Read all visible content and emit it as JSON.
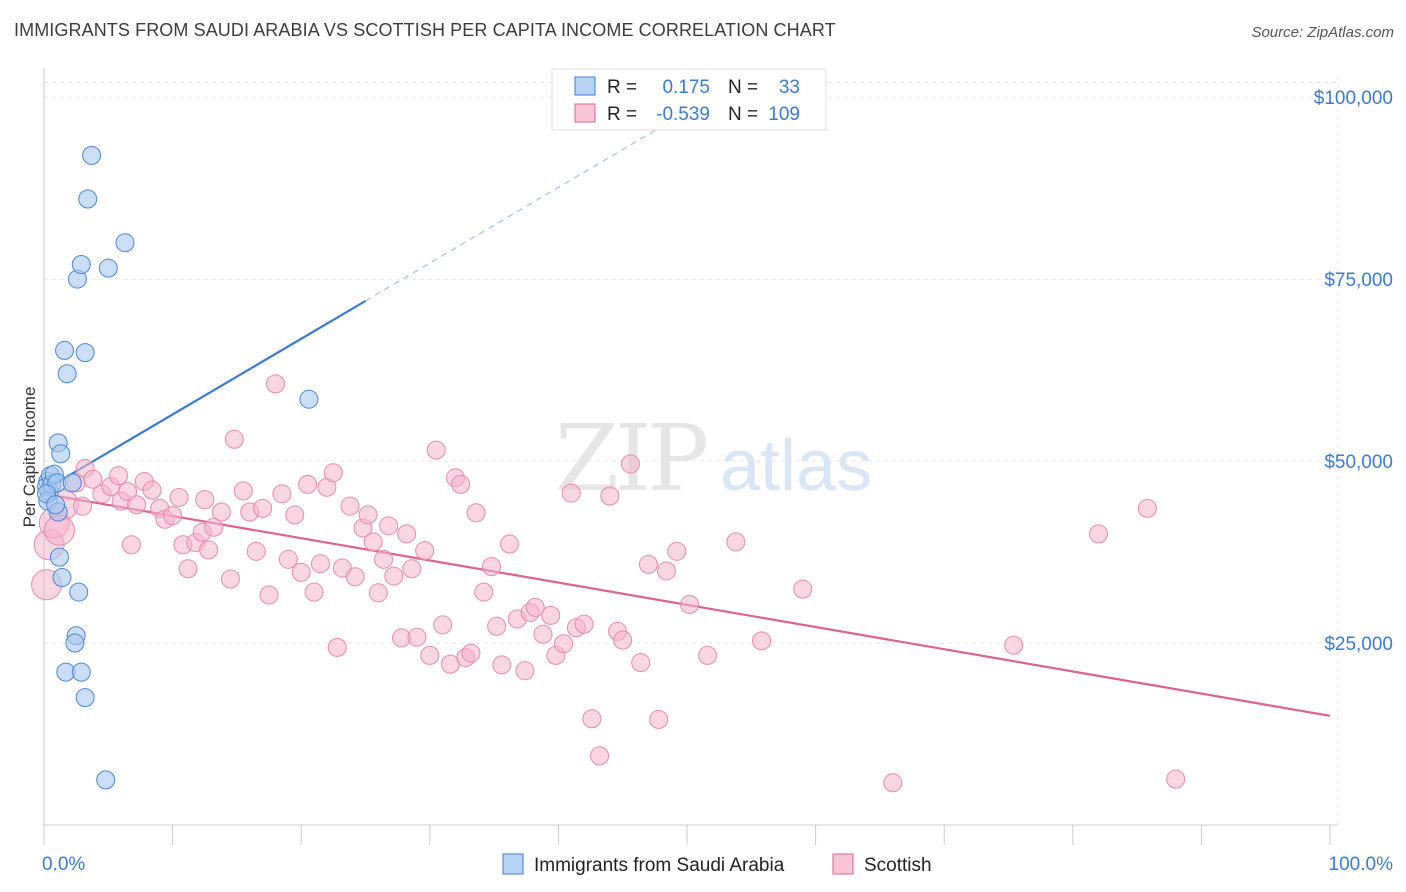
{
  "title": "IMMIGRANTS FROM SAUDI ARABIA VS SCOTTISH PER CAPITA INCOME CORRELATION CHART",
  "source": "Source: ZipAtlas.com",
  "watermark": {
    "zip": "ZIP",
    "atlas": "atlas"
  },
  "colors": {
    "blue": "#3a7bd5",
    "blue_fill": "#a9c8f2",
    "pink": "#e06090",
    "pink_fill": "#f5b5cc"
  },
  "chart_data": {
    "type": "scatter",
    "title": "IMMIGRANTS FROM SAUDI ARABIA VS SCOTTISH PER CAPITA INCOME CORRELATION CHART",
    "xlabel": "",
    "ylabel": "Per Capita Income",
    "xlim": [
      0,
      100
    ],
    "ylim": [
      0,
      104000
    ],
    "x_tick_labels": [
      "0.0%",
      "100.0%"
    ],
    "y_ticks": [
      25000,
      50000,
      75000,
      100000
    ],
    "y_tick_labels": [
      "$25,000",
      "$50,000",
      "$75,000",
      "$100,000"
    ],
    "grid": true,
    "legend": {
      "placement": "top-center",
      "entries": [
        {
          "r_label": "R =",
          "r_value": "0.175",
          "n_label": "N =",
          "n_value": "33"
        },
        {
          "r_label": "R =",
          "r_value": "-0.539",
          "n_label": "N =",
          "n_value": "109"
        }
      ]
    },
    "bottom_legend": [
      "Immigrants from Saudi Arabia",
      "Scottish"
    ],
    "series": [
      {
        "name": "Immigrants from Saudi Arabia",
        "color": "#3a7bd5",
        "trend": {
          "x0": 0,
          "y0": 46000,
          "x1": 25,
          "y1": 72000,
          "dash_to_x": 50
        },
        "points": [
          [
            0.3,
            47200
          ],
          [
            0.4,
            45800
          ],
          [
            0.2,
            46500
          ],
          [
            0.5,
            48000
          ],
          [
            0.6,
            46800
          ],
          [
            0.8,
            48200
          ],
          [
            0.3,
            44500
          ],
          [
            1.0,
            47000
          ],
          [
            1.1,
            52500
          ],
          [
            1.3,
            51000
          ],
          [
            1.2,
            36800
          ],
          [
            1.4,
            34000
          ],
          [
            1.6,
            65200
          ],
          [
            1.8,
            62000
          ],
          [
            1.1,
            43000
          ],
          [
            2.2,
            47000
          ],
          [
            2.5,
            26000
          ],
          [
            2.4,
            25000
          ],
          [
            2.7,
            32000
          ],
          [
            1.7,
            21000
          ],
          [
            2.9,
            21000
          ],
          [
            3.2,
            17500
          ],
          [
            2.6,
            75000
          ],
          [
            2.9,
            77000
          ],
          [
            3.2,
            64900
          ],
          [
            3.4,
            86000
          ],
          [
            3.7,
            92000
          ],
          [
            5.0,
            76500
          ],
          [
            6.3,
            80000
          ],
          [
            4.8,
            6200
          ],
          [
            20.6,
            58500
          ],
          [
            0.2,
            45500
          ],
          [
            0.9,
            44000
          ]
        ]
      },
      {
        "name": "Scottish",
        "color": "#e06090",
        "trend": {
          "x0": 0,
          "y0": 45500,
          "x1": 100,
          "y1": 15000
        },
        "points": [
          [
            0.2,
            33000
          ],
          [
            0.4,
            38500
          ],
          [
            0.8,
            41500
          ],
          [
            1.5,
            44000
          ],
          [
            2.5,
            47000
          ],
          [
            3.2,
            49000
          ],
          [
            3.8,
            47500
          ],
          [
            4.5,
            45500
          ],
          [
            5.2,
            46500
          ],
          [
            5.8,
            48000
          ],
          [
            6.0,
            44500
          ],
          [
            6.5,
            45800
          ],
          [
            7.2,
            44000
          ],
          [
            7.8,
            47200
          ],
          [
            8.4,
            46000
          ],
          [
            9.0,
            43500
          ],
          [
            9.4,
            42000
          ],
          [
            10.0,
            42500
          ],
          [
            10.5,
            45000
          ],
          [
            10.8,
            38500
          ],
          [
            11.2,
            35200
          ],
          [
            11.8,
            38800
          ],
          [
            12.3,
            40200
          ],
          [
            12.8,
            37800
          ],
          [
            13.2,
            40900
          ],
          [
            13.8,
            43000
          ],
          [
            14.5,
            33800
          ],
          [
            14.8,
            53000
          ],
          [
            15.5,
            45900
          ],
          [
            16.0,
            43000
          ],
          [
            16.5,
            37600
          ],
          [
            17.0,
            43500
          ],
          [
            17.5,
            31600
          ],
          [
            18.0,
            60600
          ],
          [
            18.5,
            45500
          ],
          [
            19.0,
            36500
          ],
          [
            19.5,
            42600
          ],
          [
            20.0,
            34700
          ],
          [
            20.5,
            46800
          ],
          [
            21.0,
            32000
          ],
          [
            21.5,
            35900
          ],
          [
            22.0,
            46400
          ],
          [
            22.5,
            48400
          ],
          [
            22.8,
            24400
          ],
          [
            23.2,
            35300
          ],
          [
            23.8,
            43800
          ],
          [
            24.2,
            34100
          ],
          [
            24.8,
            40800
          ],
          [
            25.2,
            42600
          ],
          [
            25.6,
            38900
          ],
          [
            26.0,
            31900
          ],
          [
            26.4,
            36500
          ],
          [
            26.8,
            41100
          ],
          [
            27.2,
            34200
          ],
          [
            27.8,
            25700
          ],
          [
            28.2,
            40000
          ],
          [
            28.6,
            35200
          ],
          [
            29.0,
            25800
          ],
          [
            29.6,
            37700
          ],
          [
            30.0,
            23300
          ],
          [
            30.5,
            51500
          ],
          [
            31.0,
            27500
          ],
          [
            31.6,
            22100
          ],
          [
            32.0,
            47700
          ],
          [
            32.4,
            46800
          ],
          [
            32.8,
            23000
          ],
          [
            33.2,
            23600
          ],
          [
            33.6,
            42900
          ],
          [
            34.2,
            32000
          ],
          [
            34.8,
            35500
          ],
          [
            35.2,
            27300
          ],
          [
            35.6,
            22000
          ],
          [
            36.2,
            38600
          ],
          [
            36.8,
            28300
          ],
          [
            37.4,
            21200
          ],
          [
            37.8,
            29200
          ],
          [
            38.2,
            29900
          ],
          [
            38.8,
            26200
          ],
          [
            39.4,
            28800
          ],
          [
            39.8,
            23300
          ],
          [
            40.4,
            24900
          ],
          [
            41.0,
            45600
          ],
          [
            41.4,
            27100
          ],
          [
            42.0,
            27600
          ],
          [
            42.6,
            14600
          ],
          [
            43.2,
            9500
          ],
          [
            44.0,
            45200
          ],
          [
            44.6,
            26600
          ],
          [
            45.0,
            25400
          ],
          [
            45.6,
            49600
          ],
          [
            46.4,
            22300
          ],
          [
            47.0,
            35800
          ],
          [
            47.8,
            14500
          ],
          [
            48.4,
            34900
          ],
          [
            49.2,
            37600
          ],
          [
            50.2,
            30300
          ],
          [
            51.6,
            23300
          ],
          [
            53.8,
            38900
          ],
          [
            55.8,
            25300
          ],
          [
            59.0,
            32400
          ],
          [
            66.0,
            5800
          ],
          [
            75.4,
            24700
          ],
          [
            82.0,
            40000
          ],
          [
            85.8,
            43500
          ],
          [
            88.0,
            6300
          ],
          [
            3.0,
            43800
          ],
          [
            1.2,
            40500
          ],
          [
            6.8,
            38500
          ],
          [
            12.5,
            44700
          ]
        ]
      }
    ]
  }
}
